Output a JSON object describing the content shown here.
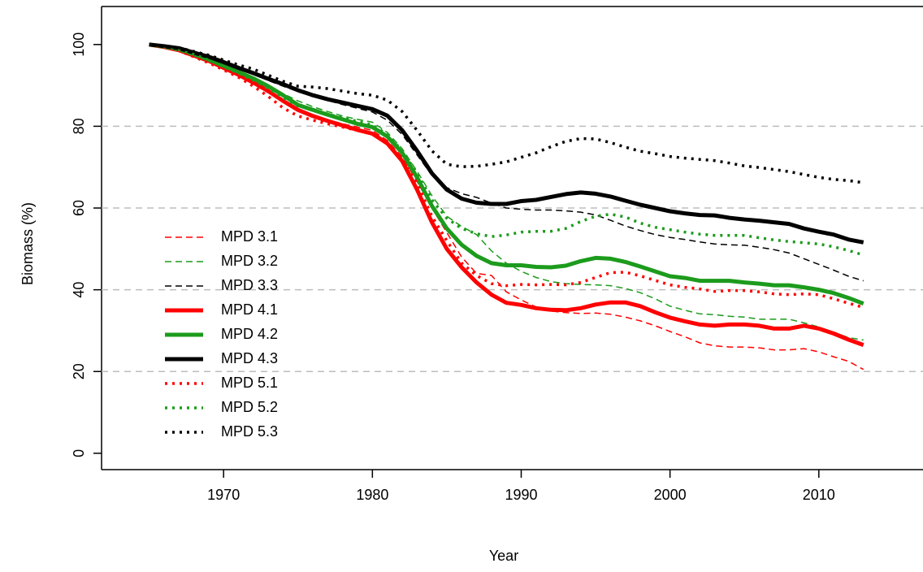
{
  "chart_data": {
    "type": "line",
    "x_label": "Year",
    "y_label": "Biomass (%)",
    "x": [
      1965,
      1966,
      1967,
      1968,
      1969,
      1970,
      1971,
      1972,
      1973,
      1974,
      1975,
      1976,
      1977,
      1978,
      1979,
      1980,
      1981,
      1982,
      1983,
      1984,
      1985,
      1986,
      1987,
      1988,
      1989,
      1990,
      1991,
      1992,
      1993,
      1994,
      1995,
      1996,
      1997,
      1998,
      1999,
      2000,
      2001,
      2002,
      2003,
      2004,
      2005,
      2006,
      2007,
      2008,
      2009,
      2010,
      2011,
      2012,
      2013
    ],
    "xlim": [
      1961.8,
      2017
    ],
    "xticks": [
      1970,
      1980,
      1990,
      2000,
      2010
    ],
    "ylim": [
      -4,
      109.3
    ],
    "yticks": [
      0,
      20,
      40,
      60,
      80,
      100
    ],
    "hgrid": [
      20,
      40,
      60,
      80
    ],
    "series": [
      {
        "name": "MPD 3.1",
        "color": "#ff0000",
        "style": "dashed",
        "values": [
          100,
          99.4,
          98.6,
          97.3,
          95.8,
          94.2,
          92.4,
          90.3,
          88.2,
          86,
          84.2,
          82.8,
          81.6,
          80.6,
          79.8,
          79,
          76.5,
          72.5,
          66.5,
          60,
          54,
          48,
          44,
          43.5,
          39.5,
          37.5,
          35.8,
          34.8,
          34.4,
          34.2,
          34.3,
          34,
          33.3,
          32.4,
          31.2,
          29.8,
          28.5,
          27,
          26.3,
          26,
          26,
          25.8,
          25.3,
          25.3,
          25.6,
          24.8,
          23.6,
          22.5,
          20.5
        ]
      },
      {
        "name": "MPD 3.2",
        "color": "#1c9b1c",
        "style": "dashed",
        "values": [
          100,
          99.5,
          98.8,
          97.7,
          96.4,
          95,
          93.5,
          91.8,
          90,
          88,
          86.2,
          84.8,
          83.6,
          82.5,
          81.7,
          81,
          78.5,
          74.5,
          69,
          63,
          58,
          55.5,
          53.5,
          49.5,
          46.5,
          44.5,
          43,
          42,
          41.5,
          41.3,
          41.2,
          41,
          40.3,
          39.3,
          37.8,
          36,
          35,
          34.1,
          33.9,
          33.5,
          33.3,
          32.8,
          32.8,
          32.8,
          31.9,
          30.9,
          29.6,
          28.3,
          27.7
        ]
      },
      {
        "name": "MPD 3.3",
        "color": "#000000",
        "style": "dashed",
        "values": [
          100,
          99.6,
          99.1,
          98.1,
          97,
          95.7,
          94.3,
          92.8,
          91.2,
          89.8,
          88.5,
          87.4,
          86.3,
          85.3,
          84.4,
          83.5,
          81.5,
          78,
          73,
          68,
          65,
          63.5,
          62.6,
          61.2,
          60,
          59.7,
          59.5,
          59.5,
          59.3,
          59,
          58.3,
          57,
          55.6,
          54.5,
          53.5,
          52.8,
          52.3,
          51.7,
          51.2,
          51,
          50.9,
          50.4,
          49.8,
          49,
          47.6,
          46.2,
          44.8,
          43.3,
          42.2
        ]
      },
      {
        "name": "MPD 4.1",
        "color": "#ff0000",
        "style": "solid",
        "values": [
          100,
          99.4,
          98.6,
          97.3,
          96,
          94.3,
          92.6,
          90.7,
          88.6,
          86.2,
          84,
          82.5,
          81.3,
          80.2,
          79.1,
          78.2,
          75.8,
          71.5,
          64.5,
          56.5,
          50,
          45.5,
          41.8,
          38.8,
          36.8,
          36.3,
          35.5,
          35.1,
          35,
          35.5,
          36.4,
          36.9,
          36.9,
          36,
          34.5,
          33.2,
          32.3,
          31.5,
          31.2,
          31.5,
          31.5,
          31.2,
          30.5,
          30.5,
          31.2,
          30.5,
          29.3,
          27.8,
          26.5
        ]
      },
      {
        "name": "MPD 4.2",
        "color": "#1c9b1c",
        "style": "solid",
        "values": [
          100,
          99.5,
          98.8,
          97.6,
          96.3,
          94.8,
          93.3,
          91.7,
          89.8,
          87.6,
          85.2,
          84,
          82.8,
          81.7,
          80.6,
          79.8,
          77.5,
          73.5,
          67.5,
          60.5,
          55,
          51,
          48.3,
          46.5,
          46,
          46,
          45.6,
          45.5,
          45.9,
          47,
          47.8,
          47.6,
          46.8,
          45.7,
          44.5,
          43.3,
          42.9,
          42.2,
          42.2,
          42.2,
          41.8,
          41.5,
          41.1,
          41.1,
          40.6,
          40,
          39.2,
          38,
          36.6
        ]
      },
      {
        "name": "MPD 4.3",
        "color": "#000000",
        "style": "solid",
        "values": [
          100,
          99.6,
          99.1,
          98,
          97,
          95.7,
          94.3,
          93,
          91.6,
          90.3,
          88.8,
          87.6,
          86.6,
          85.8,
          85,
          84.2,
          82.6,
          79,
          74,
          68.5,
          64.5,
          62.3,
          61.3,
          61,
          61,
          61.7,
          62,
          62.7,
          63.4,
          63.8,
          63.5,
          62.8,
          61.8,
          60.8,
          60,
          59.2,
          58.7,
          58.3,
          58.2,
          57.6,
          57.2,
          56.9,
          56.5,
          56.1,
          55,
          54.2,
          53.5,
          52.3,
          51.6
        ]
      },
      {
        "name": "MPD 5.1",
        "color": "#ff0000",
        "style": "dotted",
        "values": [
          100,
          99.4,
          98.5,
          97,
          95.5,
          93.8,
          92,
          89.8,
          87.3,
          84.5,
          82.5,
          81.5,
          80.6,
          79.8,
          79,
          78.2,
          75.8,
          72,
          66,
          58,
          52,
          46.5,
          43.5,
          41.5,
          41,
          41.3,
          41.2,
          41.3,
          41.2,
          41.8,
          43,
          44.2,
          44.3,
          43.4,
          42.3,
          41.2,
          40.6,
          40.2,
          39.6,
          39.8,
          39.8,
          39.5,
          39,
          38.8,
          39,
          38.8,
          37.8,
          36.7,
          35.7
        ]
      },
      {
        "name": "MPD 5.2",
        "color": "#1c9b1c",
        "style": "dotted",
        "values": [
          100,
          99.5,
          98.8,
          97.6,
          96.2,
          94.6,
          93,
          91.3,
          89.3,
          87,
          85,
          84,
          83,
          82,
          81.2,
          80.3,
          78,
          74,
          68.5,
          62,
          57.5,
          55,
          53.7,
          53,
          53.4,
          54.1,
          54.3,
          54.3,
          55,
          56.7,
          58,
          58.5,
          57.8,
          56.3,
          55.3,
          54.7,
          54.1,
          53.6,
          53.3,
          53.3,
          53.3,
          52.7,
          52.2,
          51.8,
          51.5,
          51.2,
          50.5,
          49.6,
          48.5
        ]
      },
      {
        "name": "MPD 5.3",
        "color": "#000000",
        "style": "dotted",
        "values": [
          100,
          99.6,
          99.2,
          98.3,
          97.4,
          96.2,
          95,
          94,
          92.5,
          91,
          89.8,
          89.6,
          89.2,
          88.6,
          88,
          87.6,
          86.4,
          83.6,
          79,
          74,
          70.7,
          70.1,
          70.2,
          70.7,
          71.3,
          72.4,
          73.5,
          75,
          76.3,
          77,
          76.9,
          76,
          74.9,
          73.9,
          73.3,
          72.6,
          72.2,
          71.9,
          71.6,
          71,
          70.3,
          69.9,
          69.4,
          68.9,
          68.2,
          67.5,
          67,
          66.7,
          66.2
        ]
      }
    ]
  }
}
